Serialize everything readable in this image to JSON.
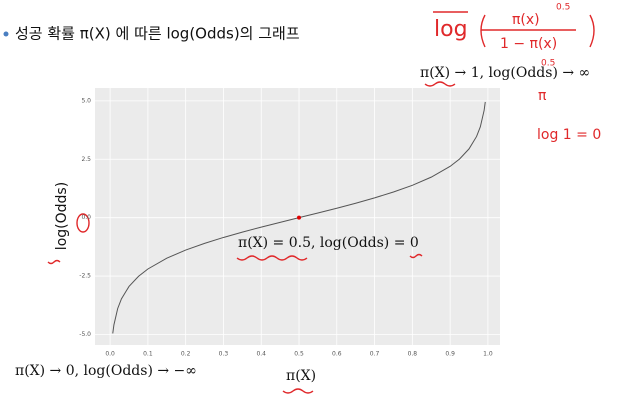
{
  "slide": {
    "title": "성공 확률 π(X) 에 따른 log(Odds)의 그래프",
    "handwritten": [
      "log",
      "π(x)",
      "0.5",
      "1 − π(x)",
      "0.5",
      "π",
      "log 1 = 0"
    ]
  },
  "chart_data": {
    "type": "line",
    "xlabel": "π(X)",
    "ylabel": "log(Odds)",
    "x": [
      0.007,
      0.01,
      0.02,
      0.03,
      0.05,
      0.075,
      0.1,
      0.15,
      0.2,
      0.25,
      0.3,
      0.35,
      0.4,
      0.45,
      0.5,
      0.55,
      0.6,
      0.65,
      0.7,
      0.75,
      0.8,
      0.85,
      0.9,
      0.925,
      0.95,
      0.97,
      0.98,
      0.99,
      0.993
    ],
    "values": [
      -4.955,
      -4.595,
      -3.892,
      -3.476,
      -2.944,
      -2.512,
      -2.197,
      -1.735,
      -1.386,
      -1.099,
      -0.847,
      -0.619,
      -0.405,
      -0.201,
      0,
      0.201,
      0.405,
      0.619,
      0.847,
      1.099,
      1.386,
      1.735,
      2.197,
      2.512,
      2.944,
      3.476,
      3.892,
      4.595,
      4.955
    ],
    "color": "#555555",
    "highlight": {
      "x": 0.5,
      "y": 0,
      "color": "#e00000"
    },
    "xlim": [
      -0.04,
      1.032
    ],
    "ylim": [
      -5.45,
      5.55
    ],
    "xticks": [
      {
        "value": 0,
        "label": "0.0"
      },
      0.1,
      0.2,
      0.3,
      0.4,
      0.5,
      0.6,
      0.7,
      0.8,
      0.9,
      {
        "value": 1,
        "label": "1.0"
      }
    ],
    "yticks": [
      {
        "value": -5,
        "label": "-5.0"
      },
      -2.5,
      {
        "value": 0,
        "label": "0.0"
      },
      2.5,
      {
        "value": 5,
        "label": "5.0"
      }
    ],
    "grid": true,
    "annotations": [
      "π(X) → 1, log(Odds) → ∞",
      "π(X) = 0.5, log(Odds) = 0",
      "π(X) → 0, log(Odds) → −∞"
    ]
  }
}
